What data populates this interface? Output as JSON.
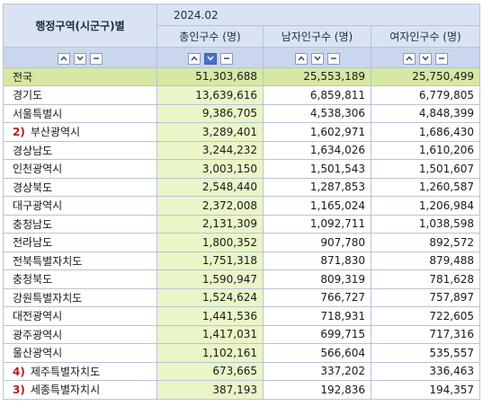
{
  "header": {
    "region_label": "행정구역(시군구)별",
    "period": "2024.02",
    "columns": [
      "총인구수 (명)",
      "남자인구수 (명)",
      "여자인구수 (명)"
    ]
  },
  "rows": [
    {
      "mark": "",
      "name": "전국",
      "total": "51,303,688",
      "male": "25,553,189",
      "female": "25,750,499"
    },
    {
      "mark": "",
      "name": "경기도",
      "total": "13,639,616",
      "male": "6,859,811",
      "female": "6,779,805"
    },
    {
      "mark": "",
      "name": "서울특별시",
      "total": "9,386,705",
      "male": "4,538,306",
      "female": "4,848,399"
    },
    {
      "mark": "2)",
      "name": "부산광역시",
      "total": "3,289,401",
      "male": "1,602,971",
      "female": "1,686,430"
    },
    {
      "mark": "",
      "name": "경상남도",
      "total": "3,244,232",
      "male": "1,634,026",
      "female": "1,610,206"
    },
    {
      "mark": "",
      "name": "인천광역시",
      "total": "3,003,150",
      "male": "1,501,543",
      "female": "1,501,607"
    },
    {
      "mark": "",
      "name": "경상북도",
      "total": "2,548,440",
      "male": "1,287,853",
      "female": "1,260,587"
    },
    {
      "mark": "",
      "name": "대구광역시",
      "total": "2,372,008",
      "male": "1,165,024",
      "female": "1,206,984"
    },
    {
      "mark": "",
      "name": "충청남도",
      "total": "2,131,309",
      "male": "1,092,711",
      "female": "1,038,598"
    },
    {
      "mark": "",
      "name": "전라남도",
      "total": "1,800,352",
      "male": "907,780",
      "female": "892,572"
    },
    {
      "mark": "",
      "name": "전북특별자치도",
      "total": "1,751,318",
      "male": "871,830",
      "female": "879,488"
    },
    {
      "mark": "",
      "name": "충청북도",
      "total": "1,590,947",
      "male": "809,319",
      "female": "781,628"
    },
    {
      "mark": "",
      "name": "강원특별자치도",
      "total": "1,524,624",
      "male": "766,727",
      "female": "757,897"
    },
    {
      "mark": "",
      "name": "대전광역시",
      "total": "1,441,536",
      "male": "718,931",
      "female": "722,605"
    },
    {
      "mark": "",
      "name": "광주광역시",
      "total": "1,417,031",
      "male": "699,715",
      "female": "717,316"
    },
    {
      "mark": "",
      "name": "울산광역시",
      "total": "1,102,161",
      "male": "566,604",
      "female": "535,557"
    },
    {
      "mark": "4)",
      "name": "제주특별자치도",
      "total": "673,665",
      "male": "337,202",
      "female": "336,463"
    },
    {
      "mark": "3)",
      "name": "세종특별자치시",
      "total": "387,193",
      "male": "192,836",
      "female": "194,357"
    }
  ],
  "sort_icons": [
    "sort-up-icon",
    "sort-down-icon",
    "sort-clear-icon"
  ],
  "colors": {
    "header_bg": "#d9e3f4",
    "control_bg": "#c9d6ee",
    "first_row_bg": "#d6e8a4",
    "total_col_bg": "#eaf5c8",
    "mark": "#b21d1d"
  }
}
